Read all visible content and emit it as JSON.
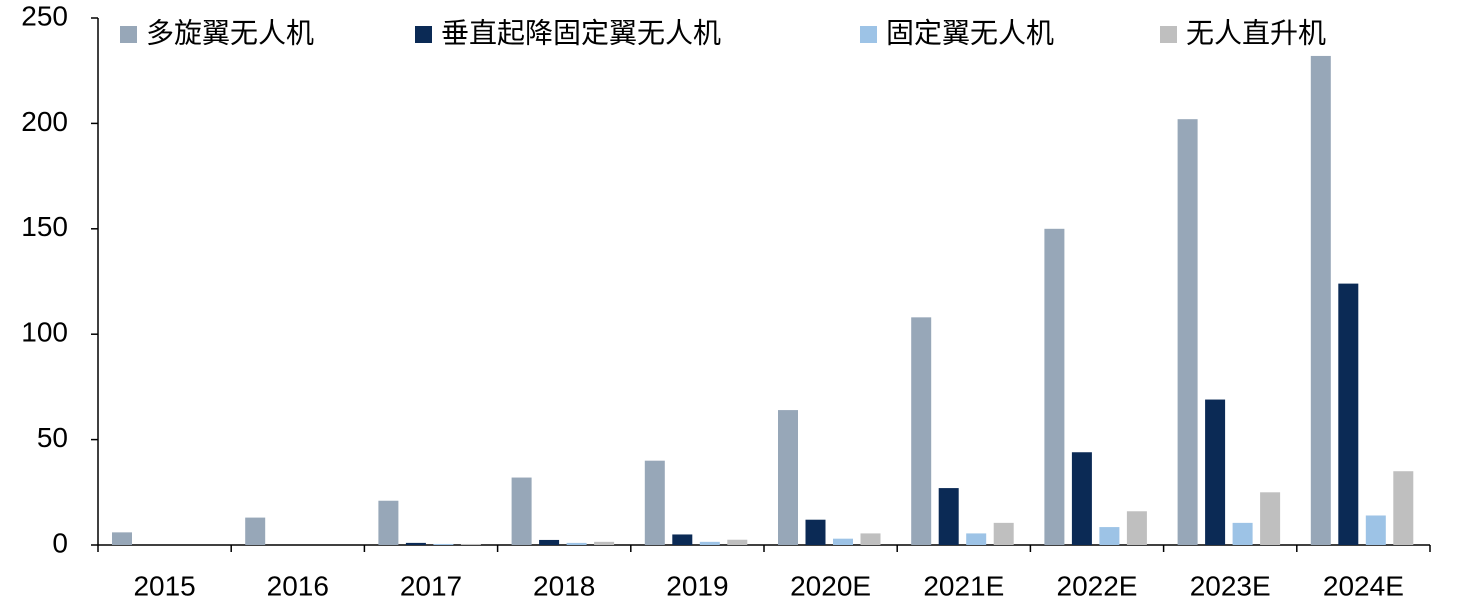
{
  "chart_data": {
    "type": "bar",
    "categories": [
      "2015",
      "2016",
      "2017",
      "2018",
      "2019",
      "2020E",
      "2021E",
      "2022E",
      "2023E",
      "2024E"
    ],
    "series": [
      {
        "name": "多旋翼无人机",
        "color": "#97a7b8",
        "values": [
          6,
          13,
          21,
          32,
          40,
          64,
          108,
          150,
          202,
          232
        ]
      },
      {
        "name": "垂直起降固定翼无人机",
        "color": "#0b2a55",
        "values": [
          0,
          0,
          1,
          2.4,
          5,
          12,
          27,
          44,
          69,
          124
        ]
      },
      {
        "name": "固定翼无人机",
        "color": "#9dc3e6",
        "values": [
          0,
          0,
          0.5,
          1,
          1.5,
          3,
          5.5,
          8.5,
          10.5,
          14
        ]
      },
      {
        "name": "无人直升机",
        "color": "#bfbfbf",
        "values": [
          0,
          0,
          0.5,
          1.5,
          2.5,
          5.5,
          10.5,
          16,
          25,
          35
        ]
      }
    ],
    "ylim": [
      0,
      250
    ],
    "yticks": [
      0,
      50,
      100,
      150,
      200,
      250
    ]
  }
}
